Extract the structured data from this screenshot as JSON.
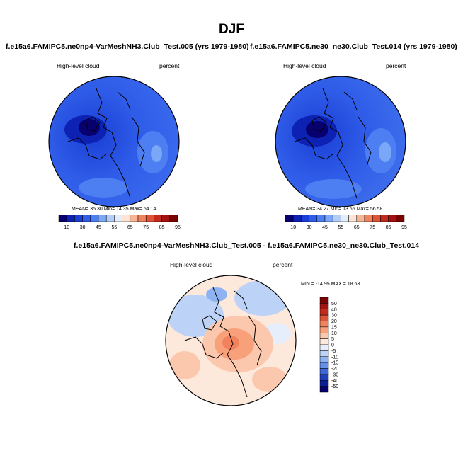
{
  "figure": {
    "title": "DJF",
    "panels": [
      {
        "title": "f.e15a6.FAMIPC5.ne0np4-VarMeshNH3.Club_Test.005 (yrs 1979-1980)",
        "variable": "High-level cloud",
        "units": "percent",
        "stats": {
          "mean_label": "MEAN=",
          "mean": "35.30",
          "min_label": "Min=",
          "min": "14.35",
          "max_label": "Max=",
          "max": "54.14"
        }
      },
      {
        "title": "f.e15a6.FAMIPC5.ne30_ne30.Club_Test.014 (yrs 1979-1980)",
        "variable": "High-level cloud",
        "units": "percent",
        "stats": {
          "mean_label": "MEAN=",
          "mean": "34.27",
          "min_label": "Min=",
          "min": "13.65",
          "max_label": "Max=",
          "max": "56.58"
        }
      },
      {
        "title": "f.e15a6.FAMIPC5.ne0np4-VarMeshNH3.Club_Test.005 - f.e15a6.FAMIPC5.ne30_ne30.Club_Test.014",
        "variable": "High-level cloud",
        "units": "percent",
        "stats_text": "MIN = -14.95 MAX =  18.63"
      }
    ]
  },
  "chart_data": [
    {
      "type": "heatmap",
      "projection": "polar-stereographic",
      "hemisphere": "north",
      "title": "f.e15a6.FAMIPC5.ne0np4-VarMeshNH3.Club_Test.005 (yrs 1979-1980)",
      "variable": "High-level cloud",
      "units": "percent",
      "mean": 35.3,
      "min": 14.35,
      "max": 54.14,
      "colorbar": {
        "orientation": "horizontal",
        "levels": [
          10,
          30,
          40,
          45,
          50,
          55,
          60,
          65,
          70,
          75,
          80,
          85,
          90,
          95
        ],
        "tick_labels": [
          "10",
          "30",
          "45",
          "55",
          "65",
          "75",
          "85",
          "95"
        ],
        "colors": [
          "#08006e",
          "#0d22b3",
          "#1a3fd6",
          "#2f5ce8",
          "#4d7ff2",
          "#7aa7f7",
          "#b3cdf7",
          "#e4eefb",
          "#fde3d3",
          "#f8b594",
          "#f0835e",
          "#df5336",
          "#c42a1c",
          "#a31210",
          "#7a0403"
        ]
      }
    },
    {
      "type": "heatmap",
      "projection": "polar-stereographic",
      "hemisphere": "north",
      "title": "f.e15a6.FAMIPC5.ne30_ne30.Club_Test.014 (yrs 1979-1980)",
      "variable": "High-level cloud",
      "units": "percent",
      "mean": 34.27,
      "min": 13.65,
      "max": 56.58,
      "colorbar": {
        "orientation": "horizontal",
        "levels": [
          10,
          30,
          40,
          45,
          50,
          55,
          60,
          65,
          70,
          75,
          80,
          85,
          90,
          95
        ],
        "tick_labels": [
          "10",
          "30",
          "45",
          "55",
          "65",
          "75",
          "85",
          "95"
        ],
        "colors": [
          "#08006e",
          "#0d22b3",
          "#1a3fd6",
          "#2f5ce8",
          "#4d7ff2",
          "#7aa7f7",
          "#b3cdf7",
          "#e4eefb",
          "#fde3d3",
          "#f8b594",
          "#f0835e",
          "#df5336",
          "#c42a1c",
          "#a31210",
          "#7a0403"
        ]
      }
    },
    {
      "type": "heatmap",
      "projection": "polar-stereographic",
      "hemisphere": "north",
      "title": "f.e15a6.FAMIPC5.ne0np4-VarMeshNH3.Club_Test.005 - f.e15a6.FAMIPC5.ne30_ne30.Club_Test.014",
      "variable": "High-level cloud",
      "units": "percent",
      "min": -14.95,
      "max": 18.63,
      "colorbar": {
        "orientation": "vertical",
        "levels": [
          50,
          40,
          30,
          20,
          15,
          10,
          5,
          0,
          -5,
          -10,
          -15,
          -20,
          -30,
          -40,
          -50
        ],
        "tick_labels": [
          "50",
          "40",
          "30",
          "20",
          "15",
          "10",
          "5",
          "0",
          "-5",
          "-10",
          "-15",
          "-20",
          "-30",
          "-40",
          "-50"
        ],
        "colors": [
          "#7a0403",
          "#a31210",
          "#c42a1c",
          "#df5336",
          "#f0835e",
          "#f8a07a",
          "#fbc8ad",
          "#fde8dc",
          "#e6eefb",
          "#bcd2f7",
          "#8fb3f2",
          "#6690ea",
          "#3e67d9",
          "#1d3fc0",
          "#0b1f96",
          "#08006e"
        ]
      }
    }
  ]
}
